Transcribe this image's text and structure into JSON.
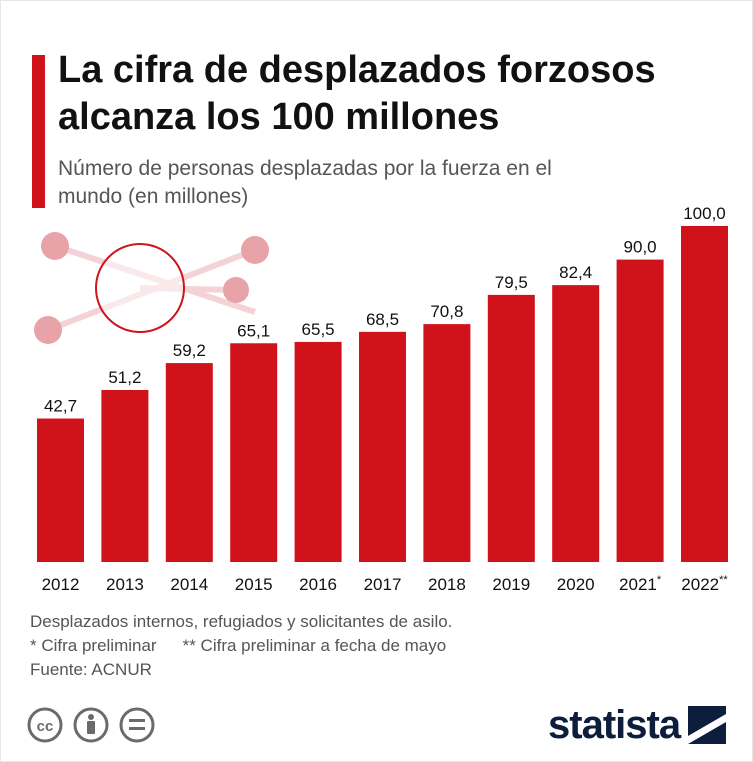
{
  "header": {
    "title": "La cifra de desplazados forzosos alcanza los 100 millones",
    "subtitle": "Número de personas desplazadas por la fuerza en el mundo (en millones)"
  },
  "colors": {
    "accent": "#d0121b",
    "bar": "#d0121b",
    "decoration": "#e8a3a8",
    "logo": "#0c1e3c"
  },
  "chart_data": {
    "type": "bar",
    "title": "La cifra de desplazados forzosos alcanza los 100 millones",
    "subtitle": "Número de personas desplazadas por la fuerza en el mundo (en millones)",
    "xlabel": "",
    "ylabel": "",
    "ylim": [
      0,
      100
    ],
    "grid": false,
    "categories": [
      "2012",
      "2013",
      "2014",
      "2015",
      "2016",
      "2017",
      "2018",
      "2019",
      "2020",
      "2021",
      "2022"
    ],
    "category_marks": [
      "",
      "",
      "",
      "",
      "",
      "",
      "",
      "",
      "",
      "*",
      "**"
    ],
    "values": [
      42.7,
      51.2,
      59.2,
      65.1,
      65.5,
      68.5,
      70.8,
      79.5,
      82.4,
      90.0,
      100.0
    ],
    "value_labels": [
      "42,7",
      "51,2",
      "59,2",
      "65,1",
      "65,5",
      "68,5",
      "70,8",
      "79,5",
      "82,4",
      "90,0",
      "100,0"
    ]
  },
  "footnotes": {
    "line1": "Desplazados internos, refugiados y solicitantes de asilo.",
    "line2a": "* Cifra preliminar",
    "line2b": "** Cifra preliminar a fecha de mayo",
    "source": "Fuente: ACNUR"
  },
  "footer": {
    "logo_text": "statista",
    "icons": [
      "cc-icon",
      "attribution-icon",
      "no-derivatives-icon"
    ]
  }
}
